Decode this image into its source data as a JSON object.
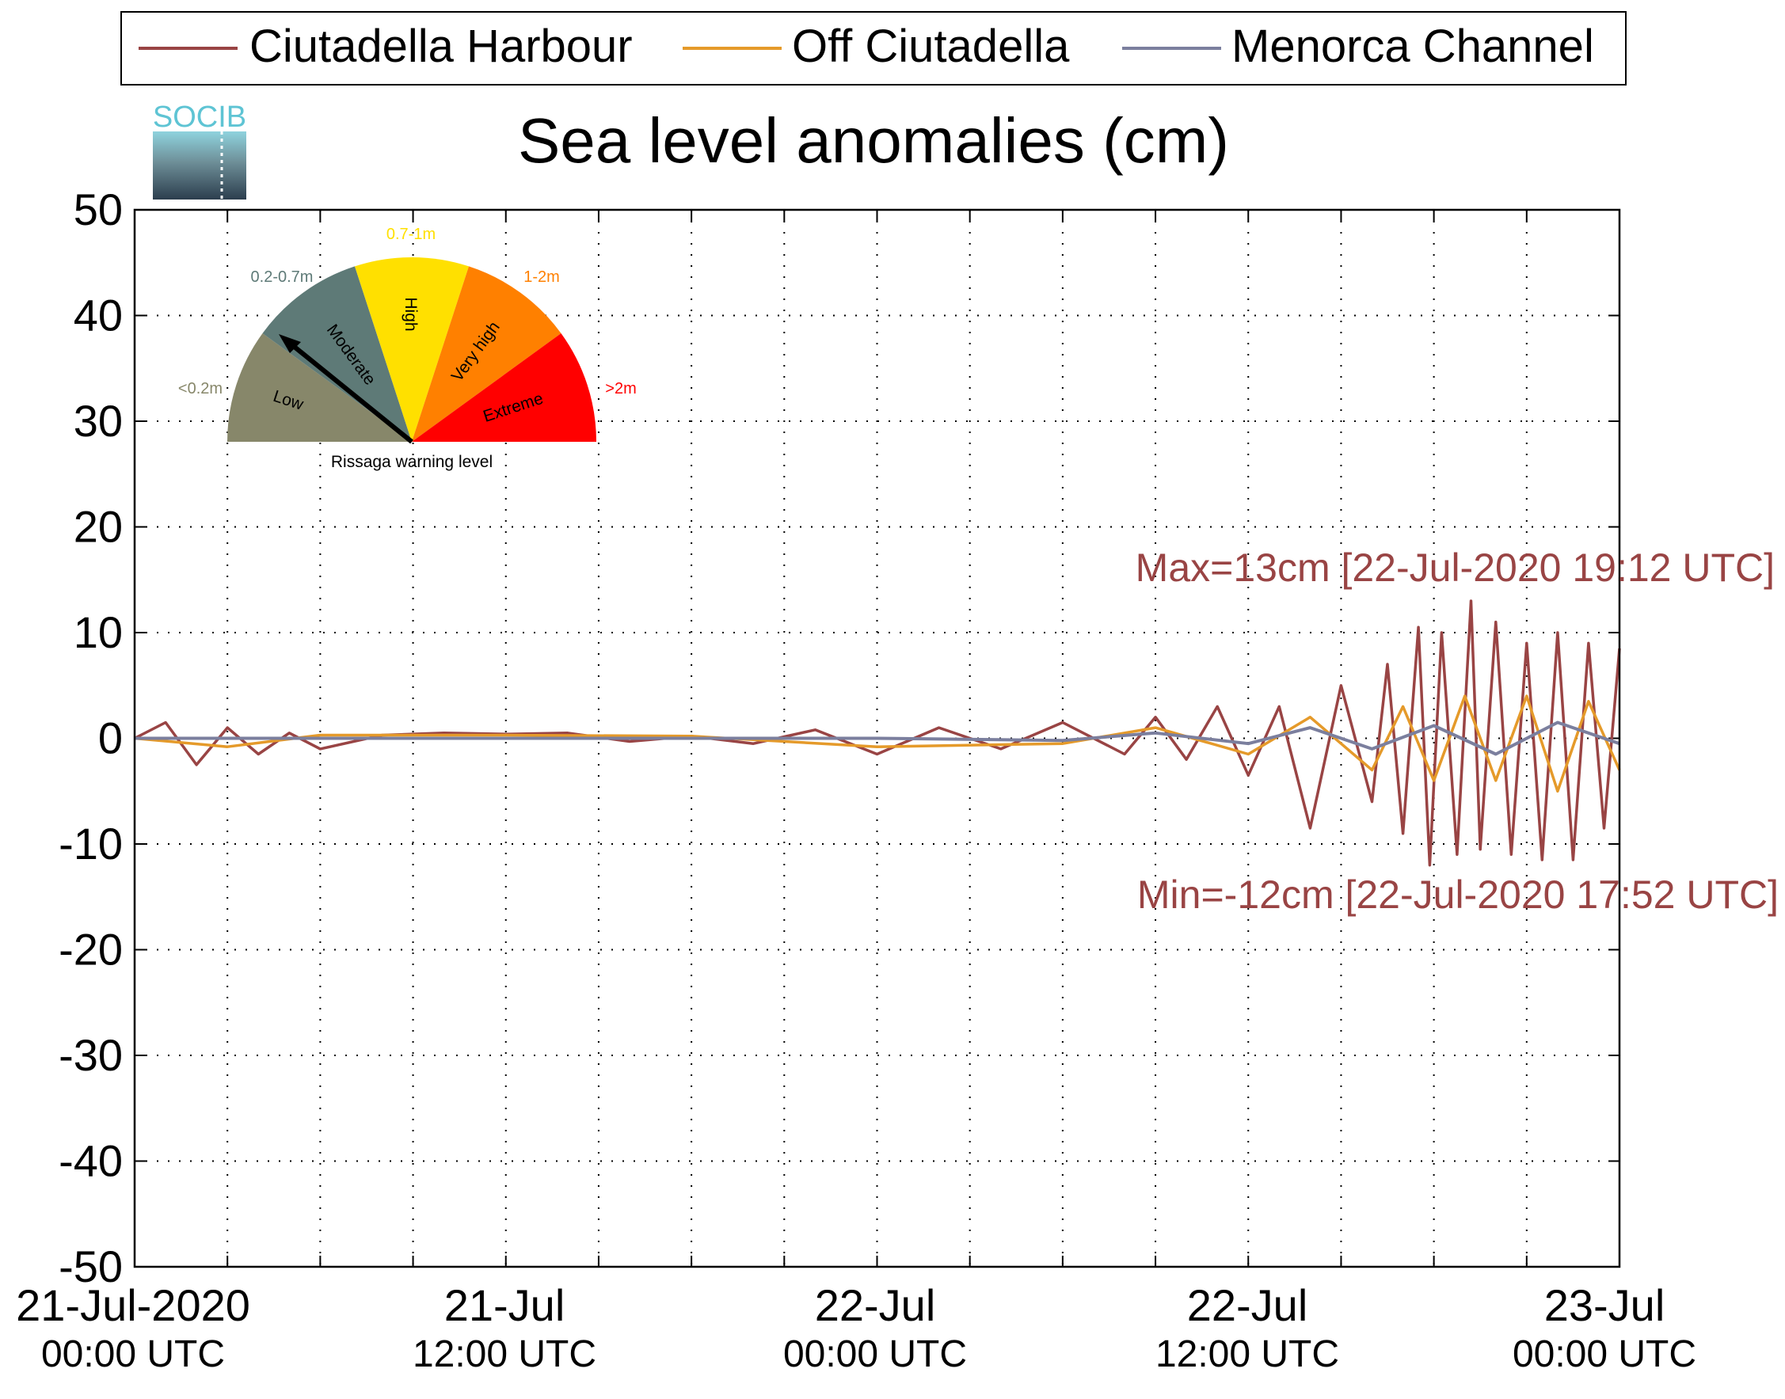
{
  "chart_data": {
    "type": "line",
    "title": "Sea level anomalies (cm)",
    "logo_text": "SOCIB",
    "xlabel": "",
    "ylabel": "",
    "ylim": [
      -50,
      50
    ],
    "yticks": [
      -50,
      -40,
      -30,
      -20,
      -10,
      0,
      10,
      20,
      30,
      40,
      50
    ],
    "xlim": [
      "2020-07-21T00:00",
      "2020-07-23T00:00"
    ],
    "x_gridlines_hours": [
      3,
      6,
      9,
      12,
      15,
      18,
      21,
      24,
      27,
      30,
      33,
      36,
      39,
      42,
      45
    ],
    "xtick_labels": [
      {
        "x": "2020-07-21T00:00",
        "line1": "21-Jul-2020",
        "line2": "00:00 UTC"
      },
      {
        "x": "2020-07-21T12:00",
        "line1": "21-Jul",
        "line2": "12:00 UTC"
      },
      {
        "x": "2020-07-22T00:00",
        "line1": "22-Jul",
        "line2": "00:00 UTC"
      },
      {
        "x": "2020-07-22T12:00",
        "line1": "22-Jul",
        "line2": "12:00 UTC"
      },
      {
        "x": "2020-07-23T00:00",
        "line1": "23-Jul",
        "line2": "00:00 UTC"
      }
    ],
    "grid": true,
    "legend_position": "top",
    "series": [
      {
        "name": "Ciutadella Harbour",
        "color": "#994444",
        "x": [
          "2020-07-21T00:00",
          "2020-07-21T01:00",
          "2020-07-21T02:00",
          "2020-07-21T03:00",
          "2020-07-21T04:00",
          "2020-07-21T05:00",
          "2020-07-21T06:00",
          "2020-07-21T08:00",
          "2020-07-21T10:00",
          "2020-07-21T12:00",
          "2020-07-21T14:00",
          "2020-07-21T16:00",
          "2020-07-21T18:00",
          "2020-07-21T20:00",
          "2020-07-21T22:00",
          "2020-07-22T00:00",
          "2020-07-22T02:00",
          "2020-07-22T04:00",
          "2020-07-22T06:00",
          "2020-07-22T08:00",
          "2020-07-22T09:00",
          "2020-07-22T10:00",
          "2020-07-22T11:00",
          "2020-07-22T12:00",
          "2020-07-22T13:00",
          "2020-07-22T14:00",
          "2020-07-22T15:00",
          "2020-07-22T16:00",
          "2020-07-22T16:30",
          "2020-07-22T17:00",
          "2020-07-22T17:30",
          "2020-07-22T17:52",
          "2020-07-22T18:15",
          "2020-07-22T18:45",
          "2020-07-22T19:12",
          "2020-07-22T19:30",
          "2020-07-22T20:00",
          "2020-07-22T20:30",
          "2020-07-22T21:00",
          "2020-07-22T21:30",
          "2020-07-22T22:00",
          "2020-07-22T22:30",
          "2020-07-22T23:00",
          "2020-07-22T23:30",
          "2020-07-23T00:00"
        ],
        "values": [
          0,
          1.5,
          -2.5,
          1,
          -1.5,
          0.5,
          -1,
          0.3,
          0.5,
          0.4,
          0.5,
          -0.3,
          0.2,
          -0.5,
          0.8,
          -1.5,
          1,
          -1,
          1.5,
          -1.5,
          2,
          -2,
          3,
          -3.5,
          3,
          -8.5,
          5,
          -6,
          7,
          -9,
          10.5,
          -12,
          10,
          -11,
          13,
          -10.5,
          11,
          -11,
          9,
          -11.5,
          10,
          -11.5,
          9,
          -8.5,
          8.5
        ]
      },
      {
        "name": "Off Ciutadella",
        "color": "#e59a2a",
        "x": [
          "2020-07-21T00:00",
          "2020-07-21T03:00",
          "2020-07-21T06:00",
          "2020-07-21T12:00",
          "2020-07-21T18:00",
          "2020-07-22T00:00",
          "2020-07-22T06:00",
          "2020-07-22T09:00",
          "2020-07-22T12:00",
          "2020-07-22T14:00",
          "2020-07-22T16:00",
          "2020-07-22T17:00",
          "2020-07-22T18:00",
          "2020-07-22T19:00",
          "2020-07-22T20:00",
          "2020-07-22T21:00",
          "2020-07-22T22:00",
          "2020-07-22T23:00",
          "2020-07-23T00:00"
        ],
        "values": [
          0,
          -0.8,
          0.3,
          0.3,
          0.2,
          -0.8,
          -0.5,
          1,
          -1.5,
          2,
          -3,
          3,
          -4,
          4,
          -4,
          4,
          -5,
          3.5,
          -3
        ]
      },
      {
        "name": "Menorca Channel",
        "color": "#7b7f9e",
        "x": [
          "2020-07-21T00:00",
          "2020-07-21T06:00",
          "2020-07-21T12:00",
          "2020-07-21T18:00",
          "2020-07-22T00:00",
          "2020-07-22T06:00",
          "2020-07-22T09:00",
          "2020-07-22T12:00",
          "2020-07-22T14:00",
          "2020-07-22T16:00",
          "2020-07-22T18:00",
          "2020-07-22T20:00",
          "2020-07-22T22:00",
          "2020-07-23T00:00"
        ],
        "values": [
          0,
          0,
          0,
          0,
          0,
          -0.2,
          0.5,
          -0.5,
          1,
          -1,
          1.2,
          -1.5,
          1.5,
          -0.5
        ]
      }
    ],
    "annotations": [
      {
        "text": "Max=13cm [22-Jul-2020 19:12 UTC]",
        "color": "#994444"
      },
      {
        "text": "Min=-12cm [22-Jul-2020 17:52 UTC]",
        "color": "#994444"
      }
    ],
    "gauge": {
      "caption": "Rissaga warning level",
      "needle_level": "Moderate",
      "sectors": [
        {
          "name": "Low",
          "range": "<0.2m",
          "color": "#87876a"
        },
        {
          "name": "Moderate",
          "range": "0.2-0.7m",
          "color": "#5e7a77"
        },
        {
          "name": "High",
          "range": "0.7-1m",
          "color": "#ffe000"
        },
        {
          "name": "Very high",
          "range": "1-2m",
          "color": "#ff8000"
        },
        {
          "name": "Extreme",
          "range": ">2m",
          "color": "#ff0000"
        }
      ]
    }
  }
}
